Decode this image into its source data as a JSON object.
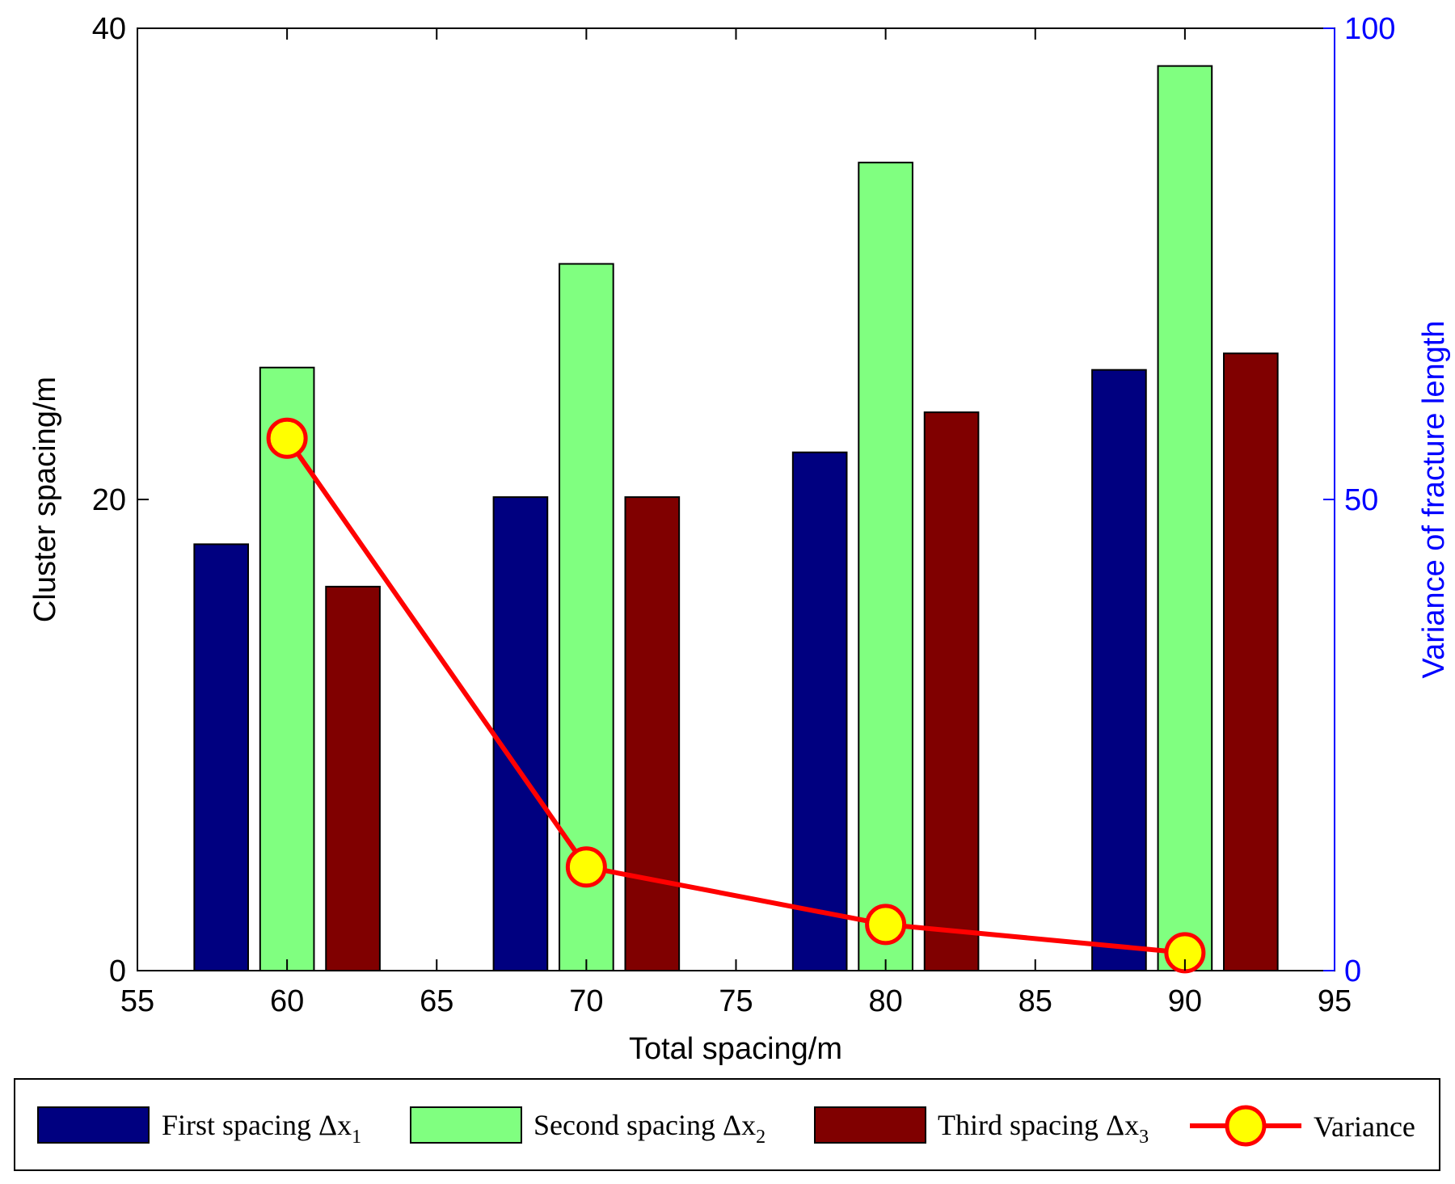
{
  "chart_data": {
    "type": "bar",
    "title": "",
    "xlabel": "Total spacing/m",
    "ylabel": "Cluster spacing/m",
    "y2label": "Variance of fracture length",
    "xlim": [
      55,
      95
    ],
    "xticks": [
      55,
      60,
      65,
      70,
      75,
      80,
      85,
      90,
      95
    ],
    "ylim": [
      0,
      40
    ],
    "yticks": [
      0,
      20,
      40
    ],
    "y2lim": [
      0,
      100
    ],
    "y2ticks": [
      0,
      50,
      100
    ],
    "categories": [
      60,
      70,
      80,
      90
    ],
    "series": [
      {
        "name": "First spacing Δx",
        "sub": "1",
        "color": "#000080",
        "values": [
          18.1,
          20.1,
          22.0,
          25.5
        ],
        "offset": -2.2
      },
      {
        "name": "Second spacing Δx",
        "sub": "2",
        "color": "#80ff80",
        "values": [
          25.6,
          30.0,
          34.3,
          38.4
        ],
        "offset": 0
      },
      {
        "name": "Third spacing Δx",
        "sub": "3",
        "color": "#800000",
        "values": [
          16.3,
          20.1,
          23.7,
          26.2
        ],
        "offset": 2.2
      }
    ],
    "line_series": {
      "name": "Variance",
      "axis": "right",
      "color": "#ff0000",
      "marker_fill": "#ffff00",
      "x": [
        60,
        70,
        80,
        90
      ],
      "values": [
        56.5,
        11.0,
        4.9,
        1.9
      ]
    },
    "legend_position": "bottom"
  }
}
